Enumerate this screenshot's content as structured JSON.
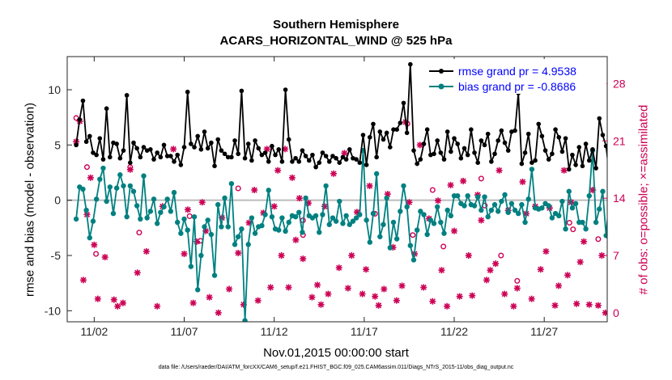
{
  "chart_data": {
    "type": "line",
    "title": "Southern Hemisphere",
    "subtitle": "ACARS_HORIZONTAL_WIND @ 525 hPa",
    "xlabel": "Nov.01,2015 00:00:00 start",
    "ylabel": "rmse and bias (model - observation)",
    "ylabel_right": "# of obs: o=possible; ×=assimilated",
    "footer": "data file: /Users/raeder/DAI/ATM_forcXX/CAM6_setup/f.e21.FHIST_BGC.f09_025.CAM6assim.011/Diags_NTrS_2015-11/obs_diag_output.nc",
    "xlim": [
      0.5,
      30.5
    ],
    "ylim": [
      -11,
      13
    ],
    "ylim_right": [
      -1.1,
      31.3
    ],
    "xticks": [
      {
        "x": 2,
        "label": "11/02"
      },
      {
        "x": 7,
        "label": "11/07"
      },
      {
        "x": 12,
        "label": "11/12"
      },
      {
        "x": 17,
        "label": "11/17"
      },
      {
        "x": 22,
        "label": "11/22"
      },
      {
        "x": 27,
        "label": "11/27"
      }
    ],
    "yticks": [
      -10,
      -5,
      0,
      5,
      10
    ],
    "yticks_right": [
      0,
      7,
      14,
      21,
      28
    ],
    "legend": [
      "rmse grand pr = 4.9538",
      "bias grand pr = -0.8686"
    ],
    "legend_position": "top-right",
    "colors": {
      "rmse": "#000000",
      "bias": "#008080",
      "obs": "#cc0055",
      "legend_text": "#0000ff",
      "zero_line": "#bbbbbb"
    },
    "series": [
      {
        "name": "rmse",
        "values": [
          5.0,
          7.3,
          9.0,
          5.3,
          5.8,
          4.3,
          4.1,
          5.6,
          3.7,
          8.3,
          3.9,
          5.2,
          5.1,
          3.8,
          4.5,
          9.5,
          3.4,
          5.2,
          4.7,
          3.9,
          4.8,
          4.5,
          4.6,
          3.7,
          4.3,
          3.9,
          5.0,
          4.0,
          4.0,
          3.5,
          4.1,
          3.2,
          4.8,
          9.8,
          5.1,
          4.8,
          5.8,
          4.6,
          6.2,
          4.7,
          5.2,
          3.1,
          5.5,
          4.5,
          4.2,
          3.9,
          3.9,
          5.4,
          4.2,
          9.9,
          3.8,
          5.1,
          3.6,
          5.4,
          4.7,
          4.1,
          4.3,
          3.5,
          4.9,
          4.1,
          4.6,
          3.5,
          10.0,
          5.5,
          3.5,
          3.8,
          3.5,
          4.5,
          4.0,
          3.6,
          4.1,
          3.0,
          3.4,
          4.3,
          4.0,
          3.5,
          4.0,
          3.8,
          3.4,
          3.9,
          3.7,
          4.6,
          3.8,
          3.7,
          3.4,
          5.9,
          3.2,
          5.7,
          6.9,
          3.9,
          6.2,
          5.5,
          6.1,
          4.8,
          6.4,
          6.4,
          7.0,
          8.8,
          6.1,
          12.3,
          4.5,
          3.3,
          3.7,
          5.1,
          6.4,
          4.1,
          4.2,
          5.4,
          4.3,
          3.7,
          6.2,
          4.4,
          5.6,
          5.1,
          3.8,
          4.7,
          4.1,
          6.4,
          4.3,
          3.4,
          5.4,
          5.0,
          6.0,
          3.5,
          4.2,
          5.4,
          6.3,
          5.2,
          4.5,
          6.2,
          6.3,
          9.7,
          3.3,
          4.3,
          6.0,
          3.4,
          3.6,
          6.9,
          5.8,
          4.5,
          3.7,
          4.2,
          6.4,
          5.7,
          4.4,
          5.6,
          2.8,
          4.1,
          3.2,
          4.8,
          3.1,
          5.1,
          3.6,
          4.6,
          2.9,
          7.4,
          5.9,
          4.9,
          2.2,
          4.8,
          3.3
        ],
        "x_start": 1.0,
        "x_step": 0.1875
      },
      {
        "name": "bias",
        "values": [
          -1.7,
          1.2,
          1.0,
          -0.9,
          -3.4,
          -1.9,
          0.1,
          1.9,
          2.9,
          -0.1,
          1.2,
          -1.2,
          1.1,
          2.3,
          1.3,
          -1.5,
          1.3,
          0.8,
          -0.5,
          -1.7,
          2.2,
          -1.6,
          -1.0,
          0.1,
          -2.1,
          -1.1,
          -0.6,
          0.1,
          -1.0,
          0.7,
          -2.0,
          -3.0,
          -1.7,
          -2.7,
          -6.0,
          -1.5,
          -8.1,
          -5.0,
          -2.4,
          -1.8,
          -3.1,
          -6.8,
          -0.4,
          -2.4,
          0.2,
          -2.4,
          1.5,
          -4.0,
          -3.3,
          -2.6,
          -10.9,
          -4.0,
          -1.6,
          -3.0,
          -2.4,
          -2.3,
          -1.3,
          0.9,
          -1.5,
          -2.6,
          -2.7,
          -1.6,
          -2.8,
          -2.0,
          -1.4,
          -1.5,
          -1.1,
          -2.9,
          0.2,
          -1.4,
          -1.6,
          -1.4,
          -2.9,
          -1.3,
          1.3,
          -2.2,
          -1.6,
          -1.9,
          -0.1,
          -2.1,
          -1.4,
          -2.2,
          -1.9,
          -1.6,
          -1.3,
          4.5,
          -1.8,
          -3.8,
          -1.2,
          2.4,
          -3.3,
          -2.2,
          0.2,
          -4.3,
          -2.0,
          -3.5,
          -1.0,
          1.3,
          -0.6,
          -4.1,
          -5.4,
          -2.7,
          -1.0,
          -1.3,
          -3.1,
          -1.8,
          -2.1,
          -0.6,
          -2.0,
          -3.0,
          -0.9,
          -1.4,
          0.4,
          0.4,
          -0.3,
          -0.5,
          0.4,
          -0.4,
          -0.5,
          0.3,
          -0.9,
          0.3,
          -1.5,
          -0.9,
          -0.4,
          -1.0,
          -0.1,
          0.5,
          -1.1,
          -0.3,
          -0.9,
          -1.2,
          -0.4,
          -2.0,
          0.1,
          2.8,
          -0.7,
          -0.8,
          -0.7,
          -0.3,
          -0.5,
          -1.6,
          -1.2,
          -1.4,
          -0.1,
          -2.6,
          0.8,
          -0.7,
          -0.3,
          -2.0,
          -2.0,
          -2.6,
          0.4,
          4.5,
          -2.0,
          -0.8,
          0.8,
          -3.2,
          0.5,
          -0.4,
          -0.8
        ],
        "x_start": 1.0,
        "x_step": 0.1875
      },
      {
        "name": "obs_assimilated",
        "axis": "right",
        "points": [
          [
            1.0,
            20.9
          ],
          [
            1.2,
            23.4
          ],
          [
            1.4,
            4.0
          ],
          [
            1.6,
            12.0
          ],
          [
            1.8,
            16.5
          ],
          [
            2.0,
            8.3
          ],
          [
            2.2,
            1.7
          ],
          [
            2.6,
            6.8
          ],
          [
            3.1,
            1.6
          ],
          [
            3.3,
            0.8
          ],
          [
            3.6,
            1.2
          ],
          [
            4.0,
            17.5
          ],
          [
            4.4,
            4.9
          ],
          [
            4.9,
            7.5
          ],
          [
            5.5,
            0.8
          ],
          [
            5.8,
            13.0
          ],
          [
            6.4,
            20.0
          ],
          [
            7.0,
            7.2
          ],
          [
            7.2,
            12.6
          ],
          [
            7.5,
            1.2
          ],
          [
            7.7,
            8.7
          ],
          [
            8.0,
            13.5
          ],
          [
            8.2,
            10.0
          ],
          [
            8.4,
            1.9
          ],
          [
            8.9,
            0.0
          ],
          [
            9.1,
            11.6
          ],
          [
            9.5,
            2.9
          ],
          [
            10.0,
            7.3
          ],
          [
            10.3,
            1.0
          ],
          [
            10.6,
            11.0
          ],
          [
            10.9,
            15.0
          ],
          [
            11.1,
            1.5
          ],
          [
            11.4,
            12.2
          ],
          [
            11.6,
            20.0
          ],
          [
            11.8,
            3.1
          ],
          [
            12.0,
            13.0
          ],
          [
            12.2,
            17.4
          ],
          [
            12.4,
            7.0
          ],
          [
            12.6,
            20.0
          ],
          [
            12.8,
            3.1
          ],
          [
            13.0,
            16.5
          ],
          [
            13.2,
            8.9
          ],
          [
            13.4,
            14.0
          ],
          [
            13.6,
            6.6
          ],
          [
            13.9,
            13.4
          ],
          [
            14.1,
            1.9
          ],
          [
            14.4,
            3.4
          ],
          [
            14.6,
            1.0
          ],
          [
            14.8,
            13.0
          ],
          [
            15.0,
            2.3
          ],
          [
            15.3,
            17.0
          ],
          [
            15.6,
            5.5
          ],
          [
            15.9,
            19.5
          ],
          [
            16.1,
            3.0
          ],
          [
            16.3,
            7.0
          ],
          [
            16.6,
            12.3
          ],
          [
            16.9,
            2.3
          ],
          [
            17.1,
            5.3
          ],
          [
            17.3,
            15.5
          ],
          [
            17.6,
            2.0
          ],
          [
            17.8,
            0.9
          ],
          [
            18.1,
            2.9
          ],
          [
            18.3,
            14.5
          ],
          [
            18.6,
            8.0
          ],
          [
            18.8,
            1.5
          ],
          [
            19.1,
            3.3
          ],
          [
            19.3,
            23.3
          ],
          [
            19.5,
            13.5
          ],
          [
            19.8,
            7.2
          ],
          [
            20.1,
            20.5
          ],
          [
            20.3,
            3.1
          ],
          [
            20.6,
            11.5
          ],
          [
            20.8,
            1.4
          ],
          [
            21.1,
            13.7
          ],
          [
            21.3,
            5.2
          ],
          [
            21.6,
            0.8
          ],
          [
            21.8,
            15.6
          ],
          [
            22.0,
            10.0
          ],
          [
            22.3,
            2.0
          ],
          [
            22.5,
            16.1
          ],
          [
            22.8,
            7.0
          ],
          [
            23.0,
            2.1
          ],
          [
            23.3,
            14.4
          ],
          [
            23.5,
            11.3
          ],
          [
            23.8,
            4.0
          ],
          [
            24.0,
            5.2
          ],
          [
            24.3,
            6.0
          ],
          [
            24.5,
            17.4
          ],
          [
            24.8,
            2.3
          ],
          [
            25.0,
            12.5
          ],
          [
            25.3,
            0.8
          ],
          [
            25.5,
            3.0
          ],
          [
            25.8,
            16.0
          ],
          [
            26.0,
            12.1
          ],
          [
            26.3,
            1.7
          ],
          [
            26.5,
            13.0
          ],
          [
            26.8,
            5.3
          ],
          [
            27.1,
            7.5
          ],
          [
            27.3,
            12.8
          ],
          [
            27.6,
            0.9
          ],
          [
            27.8,
            3.3
          ],
          [
            28.1,
            17.4
          ],
          [
            28.3,
            4.6
          ],
          [
            28.5,
            13.5
          ],
          [
            28.8,
            1.1
          ],
          [
            29.0,
            6.2
          ],
          [
            29.2,
            8.7
          ],
          [
            29.5,
            1.0
          ],
          [
            29.7,
            15.0
          ],
          [
            30.0,
            0.9
          ],
          [
            30.2,
            7.0
          ],
          [
            30.4,
            0.0
          ]
        ]
      },
      {
        "name": "obs_possible",
        "axis": "right",
        "points": [
          [
            1.0,
            23.8
          ],
          [
            1.6,
            17.8
          ],
          [
            2.1,
            7.2
          ],
          [
            4.0,
            17.8
          ],
          [
            4.5,
            9.8
          ],
          [
            7.3,
            11.8
          ],
          [
            7.9,
            8.8
          ],
          [
            10.0,
            15.2
          ],
          [
            13.6,
            9.5
          ],
          [
            13.6,
            11.3
          ],
          [
            17.6,
            12.1
          ],
          [
            19.4,
            23.1
          ],
          [
            19.7,
            9.5
          ],
          [
            20.8,
            15.0
          ],
          [
            21.4,
            8.1
          ],
          [
            23.5,
            16.4
          ],
          [
            23.7,
            13.1
          ],
          [
            24.6,
            7.0
          ],
          [
            25.5,
            3.9
          ],
          [
            28.4,
            11.0
          ],
          [
            28.6,
            10.2
          ],
          [
            30.0,
            9.0
          ]
        ]
      }
    ]
  }
}
